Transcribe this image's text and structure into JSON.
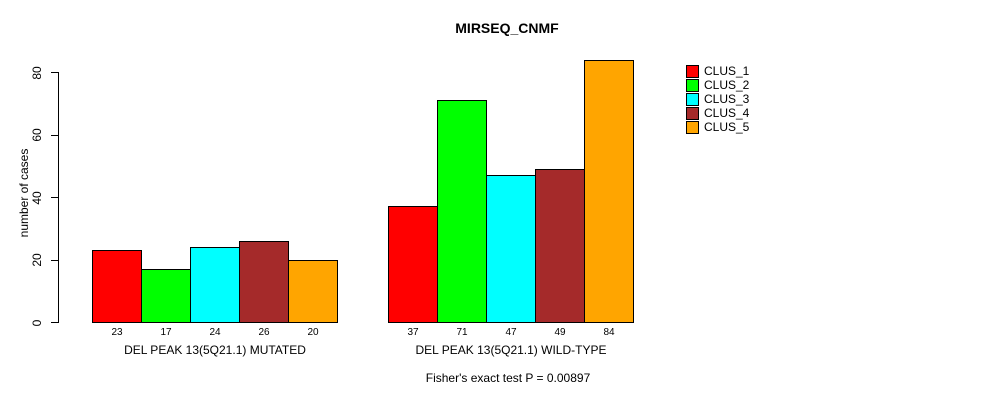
{
  "title": "MIRSEQ_CNMF",
  "chart_data": {
    "type": "bar",
    "title": "MIRSEQ_CNMF",
    "ylabel": "number of cases",
    "xlabel": "",
    "ylim": [
      0,
      80
    ],
    "yticks": [
      0,
      20,
      40,
      60,
      80
    ],
    "grid": false,
    "legend_position": "right",
    "bar_value_labels_shown": true,
    "categories": [
      "DEL PEAK 13(5Q21.1) MUTATED",
      "DEL PEAK 13(5Q21.1) WILD-TYPE"
    ],
    "series": [
      {
        "name": "CLUS_1",
        "color": "#ff0000",
        "values": [
          23,
          37
        ]
      },
      {
        "name": "CLUS_2",
        "color": "#00ff00",
        "values": [
          17,
          71
        ]
      },
      {
        "name": "CLUS_3",
        "color": "#00ffff",
        "values": [
          24,
          47
        ]
      },
      {
        "name": "CLUS_4",
        "color": "#a52a2a",
        "values": [
          26,
          49
        ]
      },
      {
        "name": "CLUS_5",
        "color": "#ffa500",
        "values": [
          20,
          84
        ]
      }
    ],
    "annotation": "Fisher's exact test P = 0.00897"
  },
  "legend": {
    "items": [
      {
        "label": "CLUS_1",
        "color": "#ff0000"
      },
      {
        "label": "CLUS_2",
        "color": "#00ff00"
      },
      {
        "label": "CLUS_3",
        "color": "#00ffff"
      },
      {
        "label": "CLUS_4",
        "color": "#a52a2a"
      },
      {
        "label": "CLUS_5",
        "color": "#ffa500"
      }
    ]
  },
  "colors": {
    "background": "#ffffff",
    "axis": "#000000",
    "text": "#000000"
  }
}
